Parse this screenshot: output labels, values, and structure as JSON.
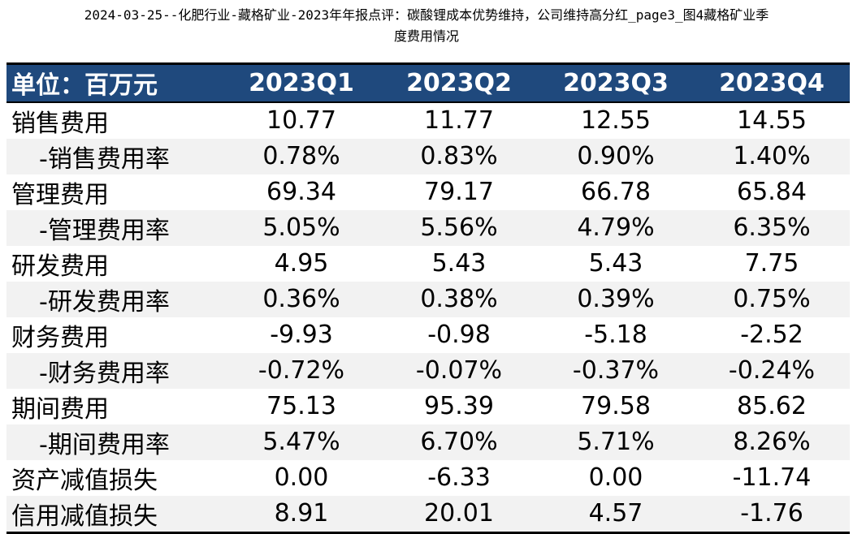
{
  "caption": {
    "line1": "2024-03-25--化肥行业-藏格矿业-2023年年报点评：碳酸锂成本优势维持，公司维持高分红_page3_图4藏格矿业季",
    "line2": "度费用情况"
  },
  "table": {
    "unit_header": "单位：百万元",
    "quarters": [
      "2023Q1",
      "2023Q2",
      "2023Q3",
      "2023Q4"
    ],
    "rows": [
      {
        "label": "销售费用",
        "values": [
          "10.77",
          "11.77",
          "12.55",
          "14.55"
        ]
      },
      {
        "label": "-销售费用率",
        "values": [
          "0.78%",
          "0.83%",
          "0.90%",
          "1.40%"
        ]
      },
      {
        "label": "管理费用",
        "values": [
          "69.34",
          "79.17",
          "66.78",
          "65.84"
        ]
      },
      {
        "label": "-管理费用率",
        "values": [
          "5.05%",
          "5.56%",
          "4.79%",
          "6.35%"
        ]
      },
      {
        "label": "研发费用",
        "values": [
          "4.95",
          "5.43",
          "5.43",
          "7.75"
        ]
      },
      {
        "label": "-研发费用率",
        "values": [
          "0.36%",
          "0.38%",
          "0.39%",
          "0.75%"
        ]
      },
      {
        "label": "财务费用",
        "values": [
          "-9.93",
          "-0.98",
          "-5.18",
          "-2.52"
        ]
      },
      {
        "label": "-财务费用率",
        "values": [
          "-0.72%",
          "-0.07%",
          "-0.37%",
          "-0.24%"
        ]
      },
      {
        "label": "期间费用",
        "values": [
          "75.13",
          "95.39",
          "79.58",
          "85.62"
        ]
      },
      {
        "label": "-期间费用率",
        "values": [
          "5.47%",
          "6.70%",
          "5.71%",
          "8.26%"
        ]
      },
      {
        "label": "资产减值损失",
        "values": [
          "0.00",
          "-6.33",
          "0.00",
          "-11.74"
        ]
      },
      {
        "label": "信用减值损失",
        "values": [
          "8.91",
          "20.01",
          "4.57",
          "-1.76"
        ]
      }
    ]
  },
  "colors": {
    "header_bg": "#1f497d",
    "header_text": "#ffffff",
    "alt_row_bg": "#f2f2f2"
  }
}
